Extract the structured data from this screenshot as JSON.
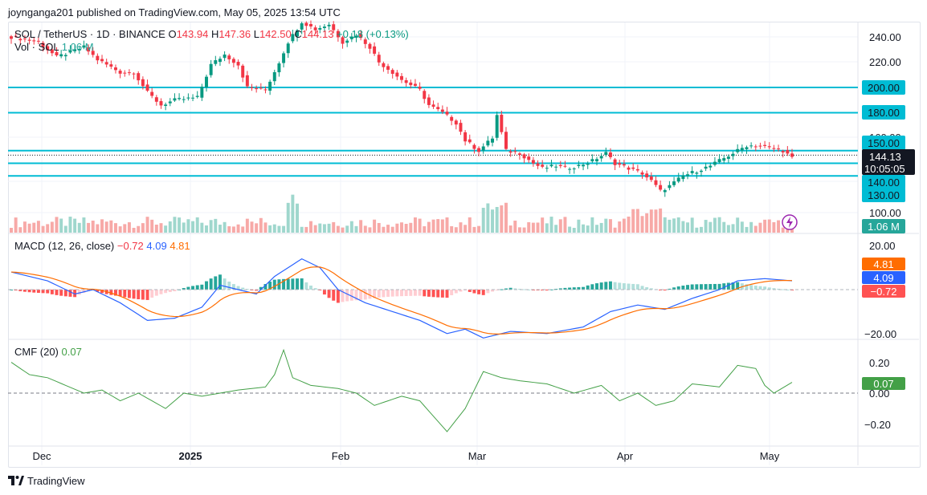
{
  "header": {
    "published_line": "joynganga201 published on TradingView.com, May 05, 2025 13:54 UTC"
  },
  "legend": {
    "symbol": "SOL / TetherUS · 1D · BINANCE",
    "open_label": "O",
    "open": "143.94",
    "high_label": "H",
    "high": "147.36",
    "low_label": "L",
    "low": "142.50",
    "close_label": "C",
    "close": "144.13",
    "change": "+0.18 (+0.13%)",
    "vol_label": "Vol · SOL",
    "vol_value": "1.06 M"
  },
  "colors": {
    "up": "#089981",
    "down": "#f23645",
    "vol_up": "#9fd7cd",
    "vol_down": "#f7a9a7",
    "hline": "#00bcd4",
    "macd": "#2962ff",
    "signal": "#ff6d00",
    "cmf": "#43a047",
    "grid": "#f0f3fa",
    "text": "#131722"
  },
  "price_axis": {
    "ticks": [
      "240.00",
      "220.00",
      "200.00",
      "180.00",
      "160.00",
      "150.00",
      "140.00",
      "130.00",
      "100.00"
    ]
  },
  "price_badges": {
    "level_200": "200.00",
    "level_180": "180.00",
    "level_150": "150.00",
    "level_140": "140.00",
    "level_130": "130.00",
    "last_price": "144.13",
    "countdown": "10:05:05",
    "volume": "1.06 M"
  },
  "macd": {
    "title": "MACD (12, 26, close)",
    "hist_value": "−0.72",
    "macd_value": "4.09",
    "signal_value": "4.81",
    "axis_ticks": [
      "20.00",
      "−20.00"
    ]
  },
  "cmf": {
    "title": "CMF (20)",
    "value": "0.07",
    "axis_ticks": [
      "0.20",
      "0.00",
      "−0.20"
    ]
  },
  "time_axis": [
    "Dec",
    "2025",
    "Feb",
    "Mar",
    "Apr",
    "May"
  ],
  "footer": {
    "brand": "TradingView"
  },
  "chart_data": {
    "type": "candlestick",
    "symbol": "SOL / TetherUS",
    "interval": "1D",
    "exchange": "BINANCE",
    "price_levels": [
      200,
      180,
      150,
      140,
      130
    ],
    "last": {
      "open": 143.94,
      "high": 147.36,
      "low": 142.5,
      "close": 144.13,
      "change": 0.18,
      "change_pct": 0.13
    },
    "ylim_price": [
      95,
      253
    ],
    "anchors_close": [
      [
        0,
        240
      ],
      [
        6,
        236
      ],
      [
        10,
        224
      ],
      [
        16,
        232
      ],
      [
        19,
        222
      ],
      [
        24,
        212
      ],
      [
        27,
        212
      ],
      [
        30,
        196
      ],
      [
        33,
        186
      ],
      [
        36,
        190
      ],
      [
        41,
        192
      ],
      [
        44,
        218
      ],
      [
        47,
        226
      ],
      [
        50,
        218
      ],
      [
        52,
        200
      ],
      [
        56,
        198
      ],
      [
        59,
        220
      ],
      [
        61,
        236
      ],
      [
        64,
        252
      ],
      [
        67,
        246
      ],
      [
        70,
        250
      ],
      [
        73,
        236
      ],
      [
        76,
        242
      ],
      [
        79,
        232
      ],
      [
        81,
        220
      ],
      [
        84,
        212
      ],
      [
        86,
        206
      ],
      [
        90,
        198
      ],
      [
        92,
        186
      ],
      [
        95,
        180
      ],
      [
        98,
        172
      ],
      [
        100,
        158
      ],
      [
        103,
        150
      ],
      [
        106,
        160
      ],
      [
        107,
        178
      ],
      [
        109,
        150
      ],
      [
        112,
        148
      ],
      [
        115,
        140
      ],
      [
        117,
        136
      ],
      [
        120,
        138
      ],
      [
        122,
        136
      ],
      [
        125,
        138
      ],
      [
        128,
        142
      ],
      [
        131,
        148
      ],
      [
        133,
        140
      ],
      [
        136,
        136
      ],
      [
        139,
        132
      ],
      [
        141,
        126
      ],
      [
        143,
        118
      ],
      [
        145,
        122
      ],
      [
        148,
        130
      ],
      [
        151,
        134
      ],
      [
        154,
        138
      ],
      [
        157,
        144
      ],
      [
        160,
        150
      ],
      [
        162,
        154
      ],
      [
        165,
        154
      ],
      [
        167,
        152
      ],
      [
        170,
        150
      ],
      [
        172,
        144
      ]
    ],
    "anchors_macd": [
      [
        0,
        8
      ],
      [
        8,
        4
      ],
      [
        14,
        -2
      ],
      [
        18,
        0
      ],
      [
        24,
        -6
      ],
      [
        30,
        -14
      ],
      [
        36,
        -13
      ],
      [
        42,
        -8
      ],
      [
        46,
        2
      ],
      [
        50,
        0
      ],
      [
        54,
        -2
      ],
      [
        58,
        6
      ],
      [
        64,
        14
      ],
      [
        68,
        10
      ],
      [
        72,
        0
      ],
      [
        78,
        -6
      ],
      [
        84,
        -10
      ],
      [
        90,
        -14
      ],
      [
        96,
        -20
      ],
      [
        100,
        -18
      ],
      [
        104,
        -22
      ],
      [
        110,
        -19
      ],
      [
        118,
        -20
      ],
      [
        126,
        -17
      ],
      [
        132,
        -10
      ],
      [
        138,
        -7
      ],
      [
        144,
        -9
      ],
      [
        150,
        -4
      ],
      [
        156,
        0
      ],
      [
        160,
        4
      ],
      [
        166,
        5
      ],
      [
        172,
        4
      ]
    ],
    "anchors_cmf": [
      [
        0,
        0.2
      ],
      [
        4,
        0.12
      ],
      [
        8,
        0.1
      ],
      [
        12,
        0.05
      ],
      [
        16,
        0.0
      ],
      [
        20,
        0.02
      ],
      [
        24,
        -0.05
      ],
      [
        28,
        0.0
      ],
      [
        34,
        -0.1
      ],
      [
        38,
        0.0
      ],
      [
        42,
        -0.02
      ],
      [
        46,
        0.0
      ],
      [
        50,
        0.02
      ],
      [
        56,
        0.04
      ],
      [
        58,
        0.12
      ],
      [
        60,
        0.28
      ],
      [
        62,
        0.1
      ],
      [
        66,
        0.05
      ],
      [
        72,
        0.03
      ],
      [
        76,
        0.0
      ],
      [
        80,
        -0.08
      ],
      [
        86,
        -0.02
      ],
      [
        90,
        -0.05
      ],
      [
        96,
        -0.25
      ],
      [
        100,
        -0.1
      ],
      [
        104,
        0.14
      ],
      [
        108,
        0.1
      ],
      [
        112,
        0.08
      ],
      [
        118,
        0.06
      ],
      [
        124,
        0.0
      ],
      [
        130,
        0.05
      ],
      [
        134,
        -0.05
      ],
      [
        138,
        0.0
      ],
      [
        142,
        -0.08
      ],
      [
        146,
        -0.05
      ],
      [
        150,
        0.06
      ],
      [
        156,
        0.04
      ],
      [
        160,
        0.18
      ],
      [
        164,
        0.16
      ],
      [
        166,
        0.05
      ],
      [
        168,
        0.0
      ],
      [
        172,
        0.07
      ]
    ],
    "bar_count": 173
  }
}
